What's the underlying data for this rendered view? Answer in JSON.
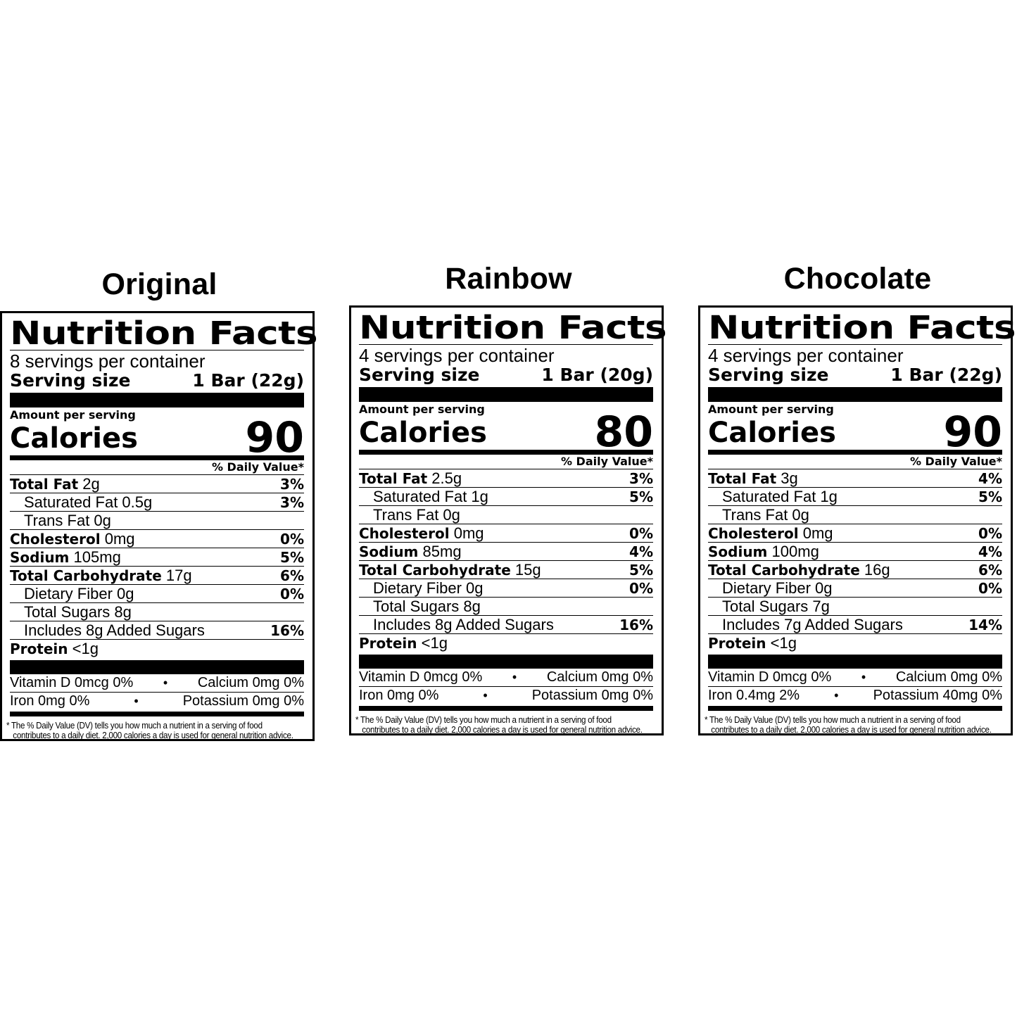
{
  "labels": [
    {
      "flavor": "Original",
      "title": "Nutrition Facts",
      "servings": "8 servings per container",
      "serving_size_label": "Serving size",
      "serving_size_value": "1 Bar (22g)",
      "amount_per_serving": "Amount per serving",
      "calories_label": "Calories",
      "calories": "90",
      "dv_header": "% Daily Value*",
      "rows": [
        {
          "name": "Total Fat",
          "amount": "2g",
          "pct": "3%",
          "indent": false
        },
        {
          "name": "",
          "amount": "Saturated Fat 0.5g",
          "pct": "3%",
          "indent": true
        },
        {
          "name": "",
          "amount": "Trans Fat 0g",
          "pct": "",
          "indent": true
        },
        {
          "name": "Cholesterol",
          "amount": "0mg",
          "pct": "0%",
          "indent": false
        },
        {
          "name": "Sodium",
          "amount": "105mg",
          "pct": "5%",
          "indent": false
        },
        {
          "name": "Total Carbohydrate",
          "amount": "17g",
          "pct": "6%",
          "indent": false
        },
        {
          "name": "",
          "amount": "Dietary Fiber 0g",
          "pct": "0%",
          "indent": true
        },
        {
          "name": "",
          "amount": "Total Sugars 8g",
          "pct": "",
          "indent": true
        },
        {
          "name": "",
          "amount": "Includes 8g Added Sugars",
          "pct": "16%",
          "indent": true
        },
        {
          "name": "Protein",
          "amount": "<1g",
          "pct": "",
          "indent": false
        }
      ],
      "vit1_left": "Vitamin D 0mcg 0%",
      "vit1_right": "Calcium 0mg 0%",
      "vit2_left": "Iron 0mg 0%",
      "vit2_right": "Potassium 0mg 0%",
      "footnote_1": "*  The % Daily Value (DV) tells you how much a nutrient in a serving of food",
      "footnote_2": "contributes to a daily diet. 2,000 calories a day is used for general nutrition advice."
    },
    {
      "flavor": "Rainbow",
      "title": "Nutrition Facts",
      "servings": "4 servings per container",
      "serving_size_label": "Serving size",
      "serving_size_value": "1 Bar (20g)",
      "amount_per_serving": "Amount per serving",
      "calories_label": "Calories",
      "calories": "80",
      "dv_header": "% Daily Value*",
      "rows": [
        {
          "name": "Total Fat",
          "amount": "2.5g",
          "pct": "3%",
          "indent": false
        },
        {
          "name": "",
          "amount": "Saturated Fat 1g",
          "pct": "5%",
          "indent": true
        },
        {
          "name": "",
          "amount": "Trans Fat 0g",
          "pct": "",
          "indent": true
        },
        {
          "name": "Cholesterol",
          "amount": "0mg",
          "pct": "0%",
          "indent": false
        },
        {
          "name": "Sodium",
          "amount": "85mg",
          "pct": "4%",
          "indent": false
        },
        {
          "name": "Total Carbohydrate",
          "amount": "15g",
          "pct": "5%",
          "indent": false
        },
        {
          "name": "",
          "amount": "Dietary Fiber 0g",
          "pct": "0%",
          "indent": true
        },
        {
          "name": "",
          "amount": "Total Sugars 8g",
          "pct": "",
          "indent": true
        },
        {
          "name": "",
          "amount": "Includes 8g Added Sugars",
          "pct": "16%",
          "indent": true
        },
        {
          "name": "Protein",
          "amount": "<1g",
          "pct": "",
          "indent": false
        }
      ],
      "vit1_left": "Vitamin D 0mcg 0%",
      "vit1_right": "Calcium 0mg 0%",
      "vit2_left": "Iron 0mg 0%",
      "vit2_right": "Potassium 0mg 0%",
      "footnote_1": "*  The % Daily Value (DV) tells you how much a nutrient in a serving of food",
      "footnote_2": "contributes to a daily diet. 2,000 calories a day is used for general nutrition advice."
    },
    {
      "flavor": "Chocolate",
      "title": "Nutrition Facts",
      "servings": "4 servings per container",
      "serving_size_label": "Serving size",
      "serving_size_value": "1 Bar (22g)",
      "amount_per_serving": "Amount per serving",
      "calories_label": "Calories",
      "calories": "90",
      "dv_header": "% Daily Value*",
      "rows": [
        {
          "name": "Total Fat",
          "amount": "3g",
          "pct": "4%",
          "indent": false
        },
        {
          "name": "",
          "amount": "Saturated Fat 1g",
          "pct": "5%",
          "indent": true
        },
        {
          "name": "",
          "amount": "Trans Fat 0g",
          "pct": "",
          "indent": true
        },
        {
          "name": "Cholesterol",
          "amount": "0mg",
          "pct": "0%",
          "indent": false
        },
        {
          "name": "Sodium",
          "amount": "100mg",
          "pct": "4%",
          "indent": false
        },
        {
          "name": "Total Carbohydrate",
          "amount": "16g",
          "pct": "6%",
          "indent": false
        },
        {
          "name": "",
          "amount": "Dietary Fiber 0g",
          "pct": "0%",
          "indent": true
        },
        {
          "name": "",
          "amount": "Total Sugars 7g",
          "pct": "",
          "indent": true
        },
        {
          "name": "",
          "amount": "Includes 7g Added Sugars",
          "pct": "14%",
          "indent": true
        },
        {
          "name": "Protein",
          "amount": "<1g",
          "pct": "",
          "indent": false
        }
      ],
      "vit1_left": "Vitamin D 0mcg 0%",
      "vit1_right": "Calcium 0mg 0%",
      "vit2_left": "Iron 0.4mg 2%",
      "vit2_right": "Potassium 40mg 0%",
      "footnote_1": "*  The % Daily Value (DV) tells you how much a nutrient in a serving of food",
      "footnote_2": "contributes to a daily diet. 2,000 calories a day is used for general nutrition advice."
    }
  ],
  "separator_glyph": "•"
}
